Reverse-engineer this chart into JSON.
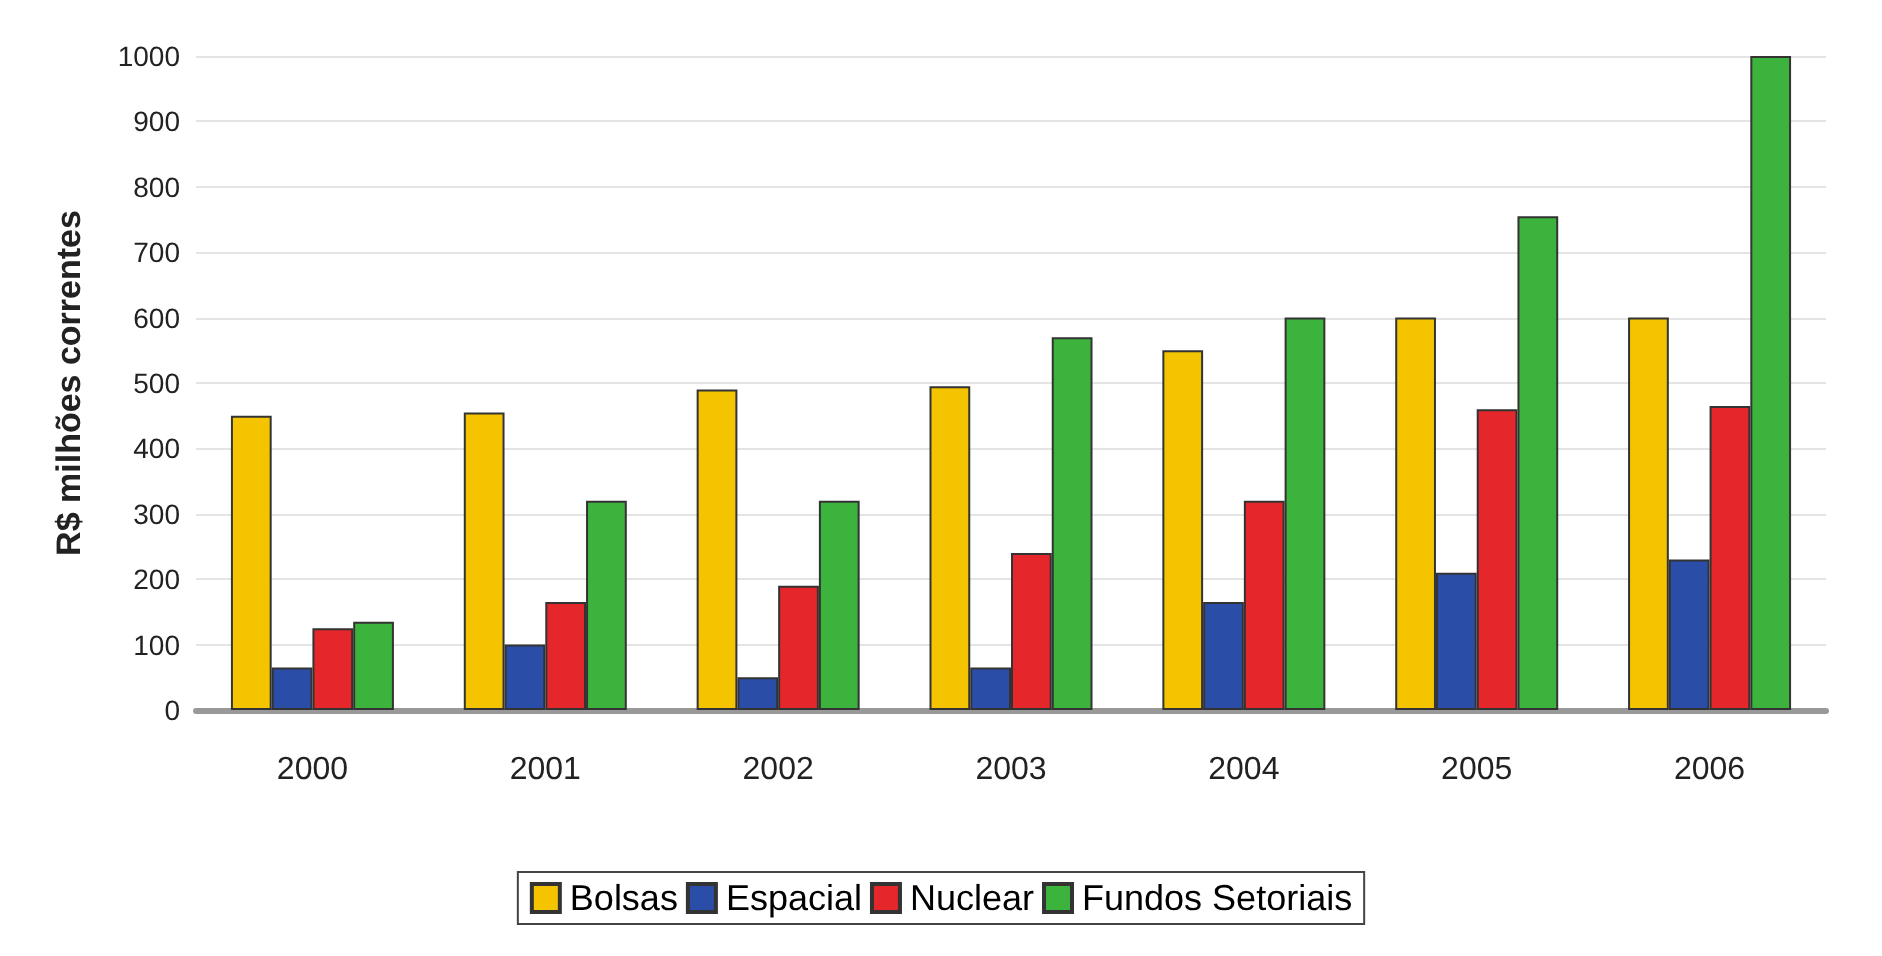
{
  "chart_data": {
    "type": "bar",
    "ylabel": "R$ milhões correntes",
    "categories": [
      "2000",
      "2001",
      "2002",
      "2003",
      "2004",
      "2005",
      "2006"
    ],
    "series": [
      {
        "name": "Bolsas",
        "color": "#f5c400",
        "values": [
          450,
          455,
          490,
          495,
          550,
          600,
          600
        ]
      },
      {
        "name": "Espacial",
        "color": "#2a4ea8",
        "values": [
          65,
          100,
          50,
          65,
          165,
          210,
          230
        ]
      },
      {
        "name": "Nuclear",
        "color": "#e5262a",
        "values": [
          125,
          165,
          190,
          240,
          320,
          460,
          465
        ]
      },
      {
        "name": "Fundos Setoriais",
        "color": "#3cb33c",
        "values": [
          135,
          320,
          320,
          570,
          600,
          755,
          1000
        ]
      }
    ],
    "ylim": [
      0,
      1000
    ],
    "yticks": [
      0,
      100,
      200,
      300,
      400,
      500,
      600,
      700,
      800,
      900,
      1000
    ],
    "grid": "y",
    "legend": "bottom"
  }
}
